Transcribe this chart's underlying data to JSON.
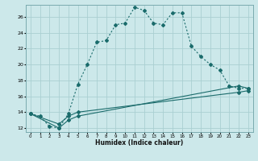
{
  "title": "",
  "xlabel": "Humidex (Indice chaleur)",
  "ylabel": "",
  "bg_color": "#cce8ea",
  "grid_color": "#aacfd2",
  "line_color": "#1a6b6b",
  "xlim": [
    -0.5,
    23.5
  ],
  "ylim": [
    11.5,
    27.5
  ],
  "xticks": [
    0,
    1,
    2,
    3,
    4,
    5,
    6,
    7,
    8,
    9,
    10,
    11,
    12,
    13,
    14,
    15,
    16,
    17,
    18,
    19,
    20,
    21,
    22,
    23
  ],
  "yticks": [
    12,
    14,
    16,
    18,
    20,
    22,
    24,
    26
  ],
  "series1_x": [
    0,
    1,
    2,
    3,
    4,
    5,
    6,
    7,
    8,
    9,
    10,
    11,
    12,
    13,
    14,
    15,
    16,
    17,
    18,
    19,
    20,
    21,
    22,
    23
  ],
  "series1_y": [
    13.8,
    13.5,
    12.2,
    12.0,
    13.8,
    17.5,
    20.0,
    22.8,
    23.0,
    25.0,
    25.2,
    27.2,
    26.8,
    25.2,
    25.0,
    26.5,
    26.5,
    22.3,
    21.0,
    20.0,
    19.3,
    17.3,
    17.0,
    17.0
  ],
  "series2_x": [
    0,
    3,
    4,
    5,
    22,
    23
  ],
  "series2_y": [
    13.8,
    12.0,
    13.0,
    13.5,
    17.3,
    17.0
  ],
  "series3_x": [
    0,
    3,
    4,
    5,
    22,
    23
  ],
  "series3_y": [
    13.8,
    12.5,
    13.5,
    14.0,
    16.5,
    16.7
  ]
}
